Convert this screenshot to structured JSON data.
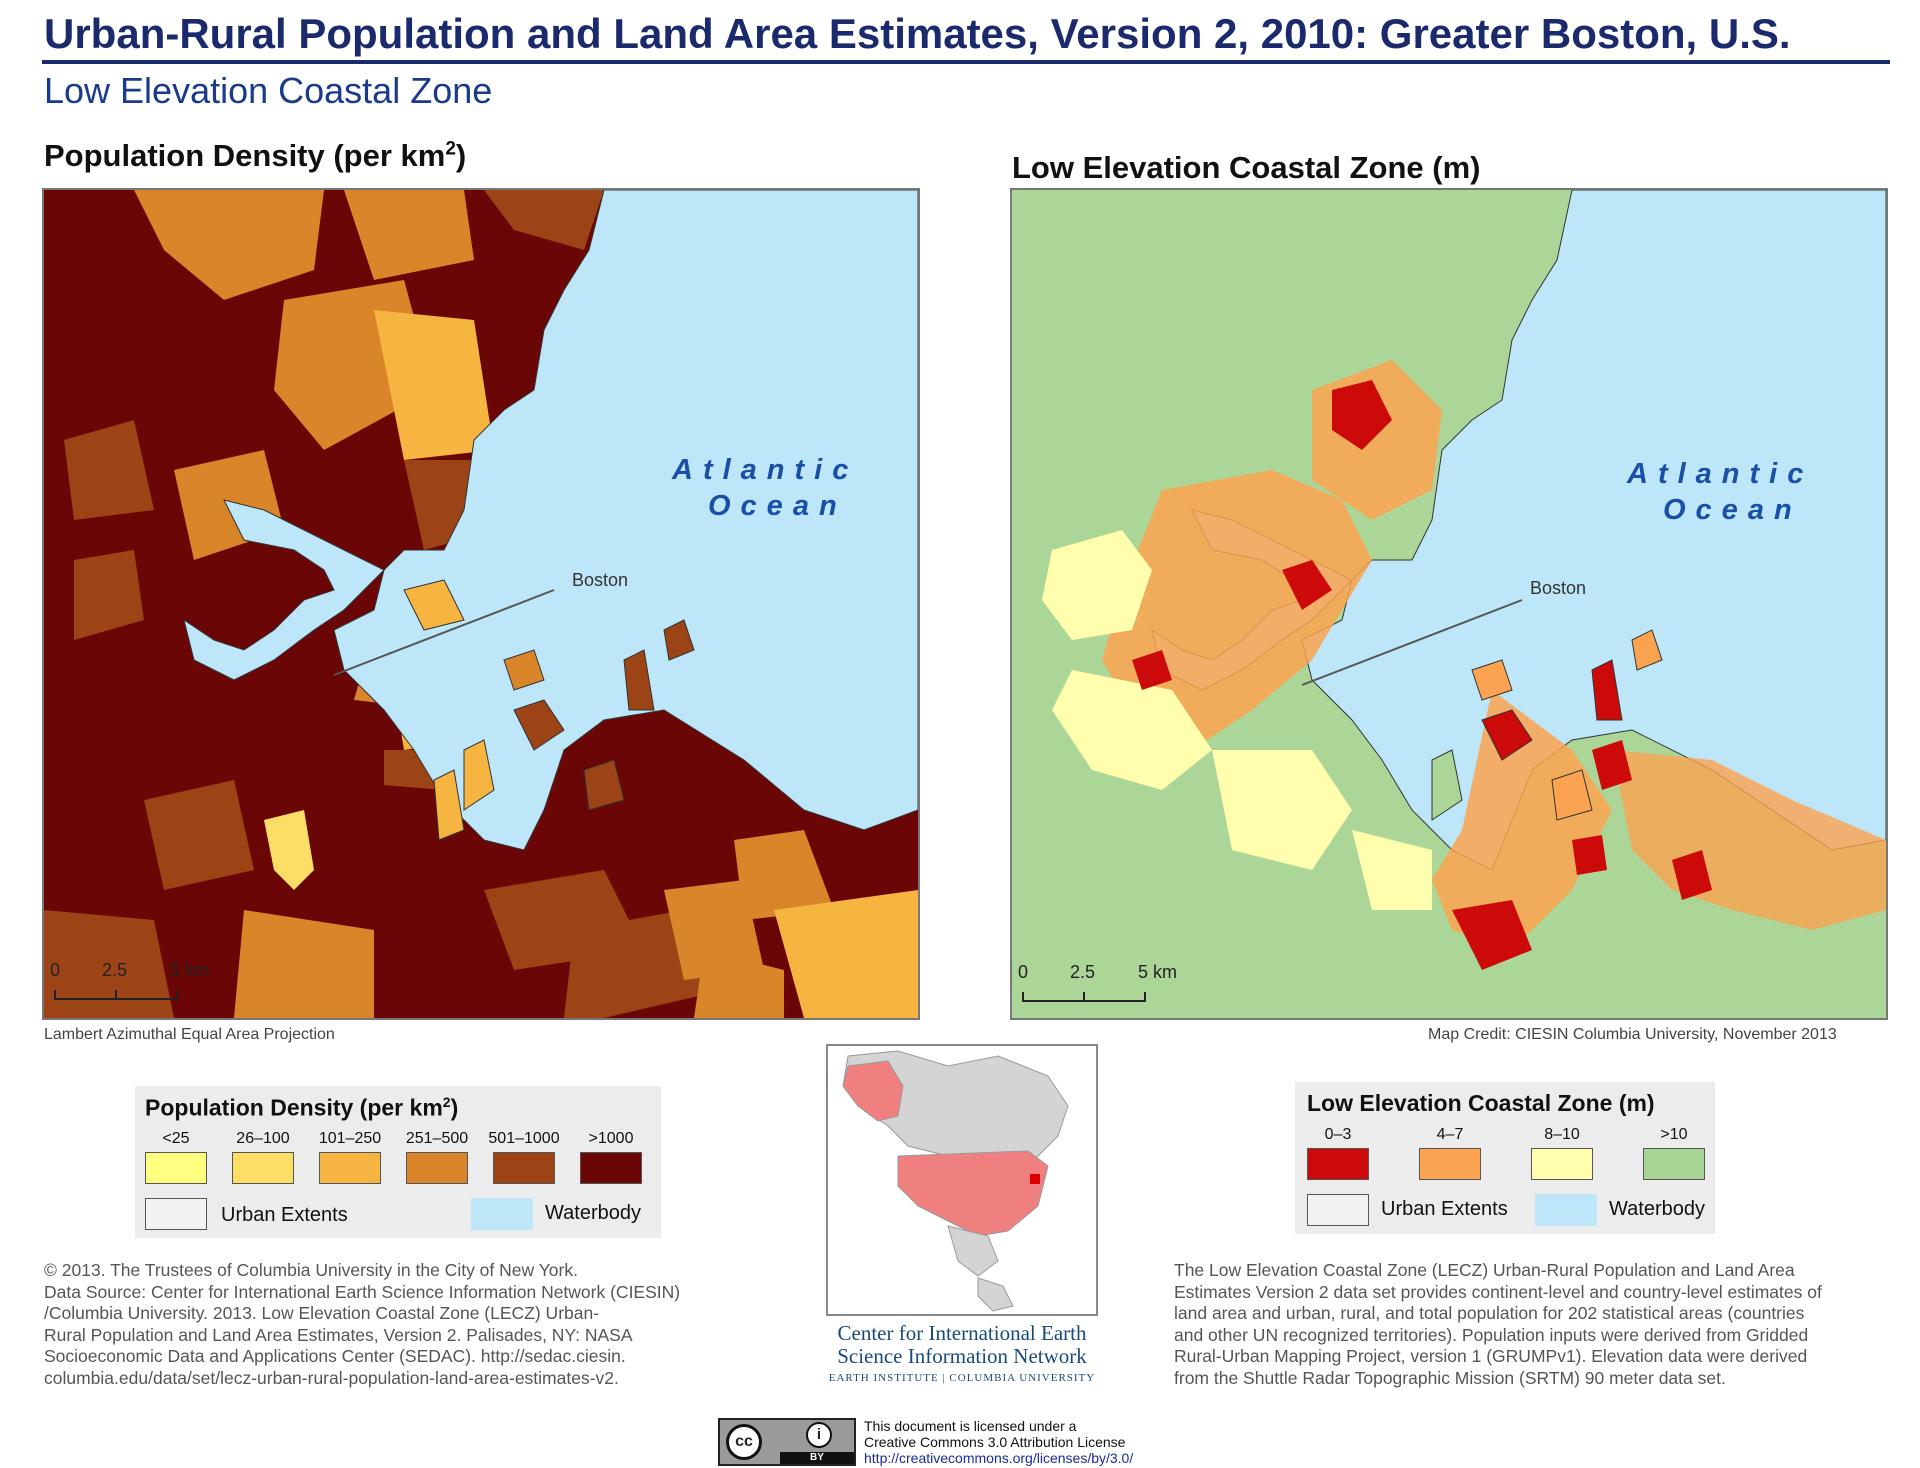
{
  "header": {
    "title": "Urban-Rural Population and Land Area Estimates, Version 2, 2010: Greater Boston, U.S.",
    "subtitle": "Low Elevation Coastal Zone"
  },
  "left_map": {
    "title": "Population Density (per km",
    "title_sup": "2",
    "title_end": ")",
    "ocean_line1": "Atlantic",
    "ocean_line2": "Ocean",
    "city_label": "Boston",
    "scale_ticks": [
      "0",
      "2.5",
      "5 km"
    ],
    "projection_note": "Lambert Azimuthal Equal Area Projection"
  },
  "right_map": {
    "title": "Low Elevation Coastal Zone (m)",
    "ocean_line1": "Atlantic",
    "ocean_line2": "Ocean",
    "city_label": "Boston",
    "scale_ticks": [
      "0",
      "2.5",
      "5 km"
    ],
    "credit": "Map Credit: CIESIN Columbia University, November 2013"
  },
  "legend_density": {
    "title": "Population Density (per km",
    "title_sup": "2",
    "title_end": ")",
    "classes": [
      {
        "label": "<25",
        "color": "#ffff80"
      },
      {
        "label": "26–100",
        "color": "#fcde66"
      },
      {
        "label": "101–250",
        "color": "#f5b540"
      },
      {
        "label": "251–500",
        "color": "#d9852a"
      },
      {
        "label": "501–1000",
        "color": "#9c4416"
      },
      {
        "label": ">1000",
        "color": "#6b0606"
      }
    ],
    "urban_extents": "Urban Extents",
    "waterbody": "Waterbody"
  },
  "legend_lecz": {
    "title": "Low Elevation Coastal Zone (m)",
    "classes": [
      {
        "label": "0–3",
        "color": "#cc0a0a"
      },
      {
        "label": "4–7",
        "color": "#fba350"
      },
      {
        "label": "8–10",
        "color": "#ffffae"
      },
      {
        "label": ">10",
        "color": "#a8d595"
      }
    ],
    "urban_extents": "Urban Extents",
    "waterbody": "Waterbody"
  },
  "colors": {
    "water": "#bde6f8",
    "land_green": "#acd697",
    "title_navy": "#1a2a6c",
    "ocean_label": "#1a4fa8",
    "inset_land": "#d4d4d4",
    "inset_highlight": "#f08080",
    "inset_marker": "#dd0000"
  },
  "copyright_block": {
    "lines": [
      "© 2013. The Trustees of Columbia University in the City of New York.",
      "Data Source: Center for International Earth Science Information Network (CIESIN)",
      "/Columbia University. 2013. Low Elevation Coastal Zone (LECZ) Urban-",
      "Rural Population and Land Area Estimates, Version 2. Palisades, NY: NASA",
      "Socioeconomic Data and Applications Center (SEDAC). http://sedac.ciesin.",
      "columbia.edu/data/set/lecz-urban-rural-population-land-area-estimates-v2."
    ]
  },
  "description_block": {
    "lines": [
      "The Low Elevation Coastal Zone (LECZ) Urban-Rural Population and Land Area",
      "Estimates Version 2 data set provides continent-level and country-level estimates of",
      "land area and urban, rural, and total population for 202 statistical areas (countries",
      "and other UN recognized territories). Population inputs were derived from Gridded",
      "Rural-Urban Mapping Project, version 1 (GRUMPv1). Elevation data were derived",
      "from the Shuttle Radar Topographic Mission (SRTM) 90 meter data set."
    ]
  },
  "ciesin": {
    "line1": "Center for International Earth",
    "line2": "Science Information Network",
    "line3": "EARTH INSTITUTE | COLUMBIA UNIVERSITY"
  },
  "license": {
    "line1": "This document is licensed under a",
    "line2": "Creative Commons 3.0 Attribution License",
    "link": "http://creativecommons.org/licenses/by/3.0/",
    "badge": "BY"
  }
}
